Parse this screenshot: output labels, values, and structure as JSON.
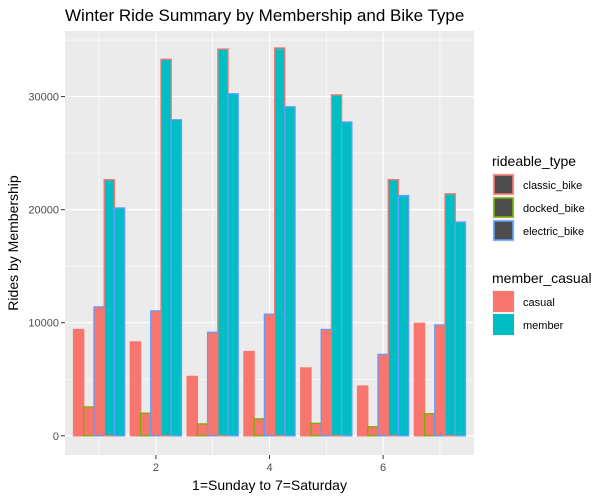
{
  "chart_data": {
    "type": "bar",
    "title": "Winter Ride Summary by Membership and Bike Type",
    "xlabel": "1=Sunday to 7=Saturday",
    "ylabel": "Rides by Membership",
    "x_ticks": [
      2,
      4,
      6
    ],
    "y_ticks": [
      0,
      10000,
      20000,
      30000
    ],
    "y_tick_labels": [
      "0",
      "10000",
      "20000",
      "30000"
    ],
    "xlim": [
      0.4,
      7.6
    ],
    "ylim": [
      -1700,
      35800
    ],
    "grid": true,
    "categories": [
      1,
      2,
      3,
      4,
      5,
      6,
      7
    ],
    "series": [
      {
        "member_casual": "casual",
        "rideable_type": "classic_bike",
        "values": [
          9400,
          8300,
          5250,
          7450,
          6000,
          4400,
          9950
        ]
      },
      {
        "member_casual": "casual",
        "rideable_type": "docked_bike",
        "values": [
          2550,
          2000,
          1050,
          1500,
          1100,
          800,
          1950
        ]
      },
      {
        "member_casual": "casual",
        "rideable_type": "electric_bike",
        "values": [
          11400,
          11050,
          9150,
          10750,
          9400,
          7200,
          9800
        ]
      },
      {
        "member_casual": "member",
        "rideable_type": "classic_bike",
        "values": [
          22650,
          33300,
          34200,
          34300,
          30150,
          22650,
          21400
        ]
      },
      {
        "member_casual": "member",
        "rideable_type": "electric_bike",
        "values": [
          20150,
          27950,
          30250,
          29100,
          27750,
          21250,
          18900
        ]
      }
    ],
    "legends": [
      {
        "title": "rideable_type",
        "entries": [
          {
            "label": "classic_bike",
            "color": "#F8766D"
          },
          {
            "label": "docked_bike",
            "color": "#7CAE00"
          },
          {
            "label": "electric_bike",
            "color": "#619CFF"
          }
        ]
      },
      {
        "title": "member_casual",
        "entries": [
          {
            "label": "casual",
            "color": "#F8766D"
          },
          {
            "label": "member",
            "color": "#00BFC4"
          }
        ]
      }
    ],
    "legend_placement": "right",
    "colors": {
      "panel_bg": "#EBEBEB",
      "grid": "#FFFFFF",
      "casual_fill": "#F8766D",
      "member_fill": "#00BFC4",
      "outline_classic": "#F8766D",
      "outline_docked": "#7CAE00",
      "outline_electric": "#619CFF",
      "legend_key_fill": "#4D4D4D"
    }
  }
}
